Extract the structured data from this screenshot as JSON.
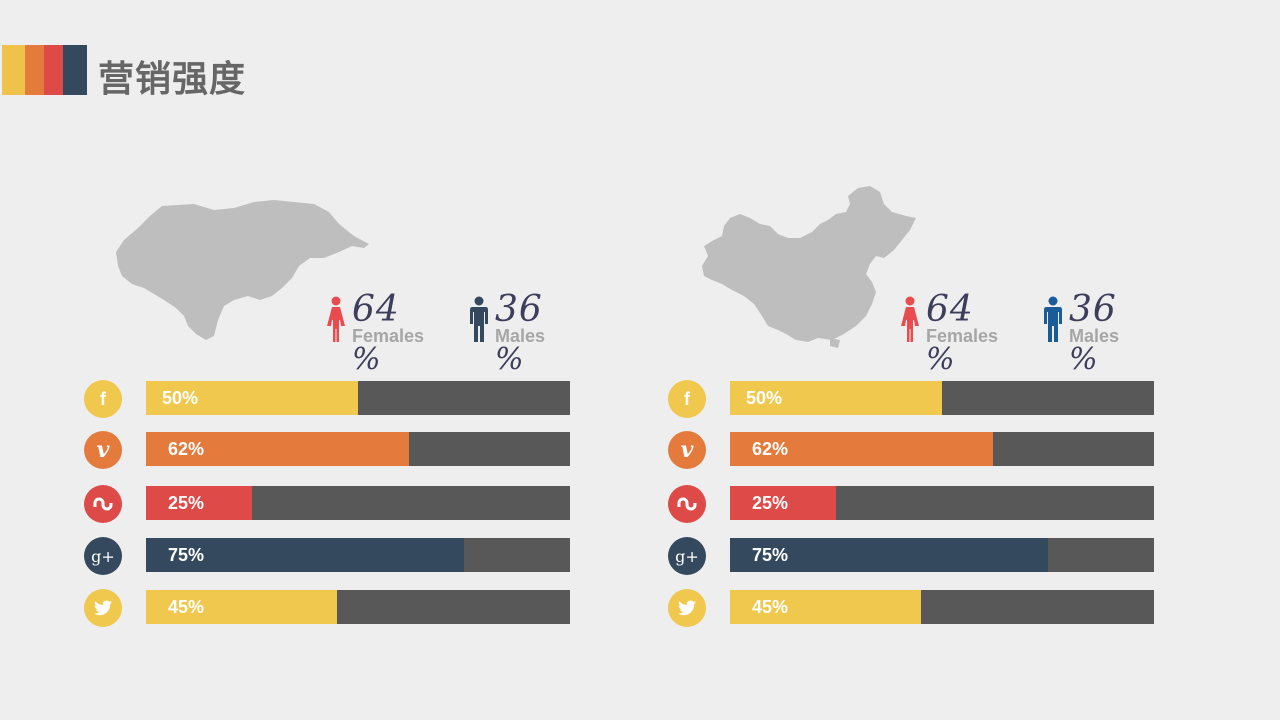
{
  "page": {
    "title": "营销强度"
  },
  "title_stripes": [
    "#efc34b",
    "#e47b3c",
    "#de4a48",
    "#34495e"
  ],
  "colors": {
    "bar_track": "#585858",
    "map": "#bebebe",
    "female": "#e84c4f",
    "male_left": "#34495e",
    "male_right": "#1a5b9a"
  },
  "panels": [
    {
      "map_name": "honduras-map",
      "females": {
        "value": "64",
        "label": "Females",
        "unit": "%"
      },
      "males": {
        "value": "36",
        "label": "Males",
        "unit": "%"
      }
    },
    {
      "map_name": "china-map",
      "females": {
        "value": "64",
        "label": "Females",
        "unit": "%"
      },
      "males": {
        "value": "36",
        "label": "Males",
        "unit": "%"
      }
    }
  ],
  "chart_data": [
    {
      "type": "bar",
      "orientation": "horizontal",
      "categories": [
        "facebook",
        "vimeo",
        "stumbleupon",
        "google-plus",
        "twitter"
      ],
      "values": [
        50,
        62,
        25,
        75,
        45
      ],
      "labels": [
        "50%",
        "62%",
        "25%",
        "75%",
        "45%"
      ],
      "colors": [
        "#efc84d",
        "#e47b3c",
        "#de4a48",
        "#34495e",
        "#efc84d"
      ],
      "xlim": [
        0,
        100
      ]
    },
    {
      "type": "bar",
      "orientation": "horizontal",
      "categories": [
        "facebook",
        "vimeo",
        "stumbleupon",
        "google-plus",
        "twitter"
      ],
      "values": [
        50,
        62,
        25,
        75,
        45
      ],
      "labels": [
        "50%",
        "62%",
        "25%",
        "75%",
        "45%"
      ],
      "colors": [
        "#efc84d",
        "#e47b3c",
        "#de4a48",
        "#34495e",
        "#efc84d"
      ],
      "xlim": [
        0,
        100
      ]
    }
  ],
  "icons": [
    {
      "name": "facebook-icon",
      "glyph": "f"
    },
    {
      "name": "vimeo-icon",
      "glyph": "v"
    },
    {
      "name": "stumbleupon-icon",
      "glyph": "ʊ"
    },
    {
      "name": "google-plus-icon",
      "glyph": "g+"
    },
    {
      "name": "twitter-icon",
      "glyph": "🐦"
    }
  ]
}
